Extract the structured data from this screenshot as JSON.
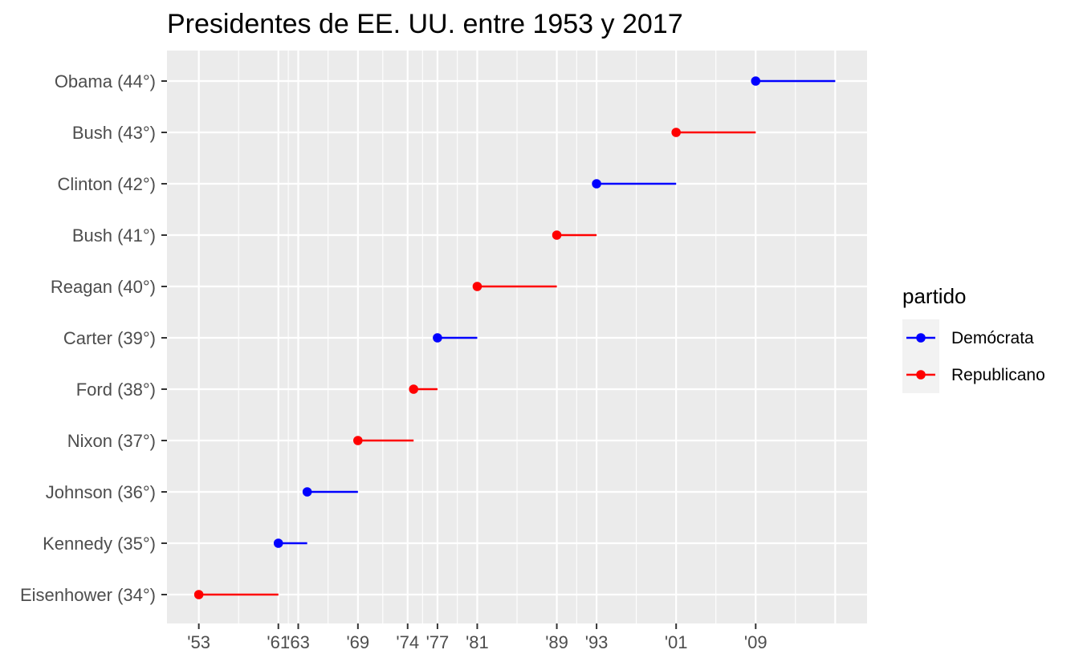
{
  "chart_data": {
    "type": "line",
    "title": "Presidentes de EE. UU. entre 1953 y 2017",
    "xlabel": "",
    "ylabel": "",
    "xlim": [
      1949.8,
      2020.2
    ],
    "x_ticks": [
      1953,
      1961,
      1963,
      1969,
      1974,
      1977,
      1981,
      1989,
      1993,
      2001,
      2009
    ],
    "x_tick_labels": [
      "'53",
      "'61",
      "'63",
      "'69",
      "'74",
      "'77",
      "'81",
      "'89",
      "'93",
      "'01",
      "'09"
    ],
    "x_minor_gridlines": [
      1957,
      1962,
      1966,
      1971.5,
      1975.5,
      1979,
      1985,
      1991,
      1997,
      2005,
      2013
    ],
    "x_major_gridlines": [
      1953,
      1961,
      1963,
      1969,
      1974,
      1977,
      1981,
      1989,
      1993,
      2001,
      2009,
      2017
    ],
    "categories": [
      "Eisenhower (34°)",
      "Kennedy (35°)",
      "Johnson (36°)",
      "Nixon (37°)",
      "Ford (38°)",
      "Carter (39°)",
      "Reagan (40°)",
      "Bush (41°)",
      "Clinton (42°)",
      "Bush (43°)",
      "Obama (44°)"
    ],
    "series": [
      {
        "name": "Republicano",
        "color": "#ff0000",
        "points": [
          {
            "president": "Eisenhower (34°)",
            "start": 1953,
            "end": 1961
          },
          {
            "president": "Nixon (37°)",
            "start": 1969,
            "end": 1974.6
          },
          {
            "president": "Ford (38°)",
            "start": 1974.6,
            "end": 1977
          },
          {
            "president": "Reagan (40°)",
            "start": 1981,
            "end": 1989
          },
          {
            "president": "Bush (41°)",
            "start": 1989,
            "end": 1993
          },
          {
            "president": "Bush (43°)",
            "start": 2001,
            "end": 2009
          }
        ]
      },
      {
        "name": "Demócrata",
        "color": "#0000ff",
        "points": [
          {
            "president": "Kennedy (35°)",
            "start": 1961,
            "end": 1963.9
          },
          {
            "president": "Johnson (36°)",
            "start": 1963.9,
            "end": 1969
          },
          {
            "president": "Carter (39°)",
            "start": 1977,
            "end": 1981
          },
          {
            "president": "Clinton (42°)",
            "start": 1993,
            "end": 2001
          },
          {
            "president": "Obama (44°)",
            "start": 2009,
            "end": 2017
          }
        ]
      }
    ],
    "legend": {
      "title": "partido",
      "position": "right",
      "entries": [
        {
          "label": "Demócrata",
          "color": "#0000ff"
        },
        {
          "label": "Republicano",
          "color": "#ff0000"
        }
      ]
    },
    "grid": true,
    "panel_background": "#ebebeb",
    "grid_color": "#ffffff"
  }
}
